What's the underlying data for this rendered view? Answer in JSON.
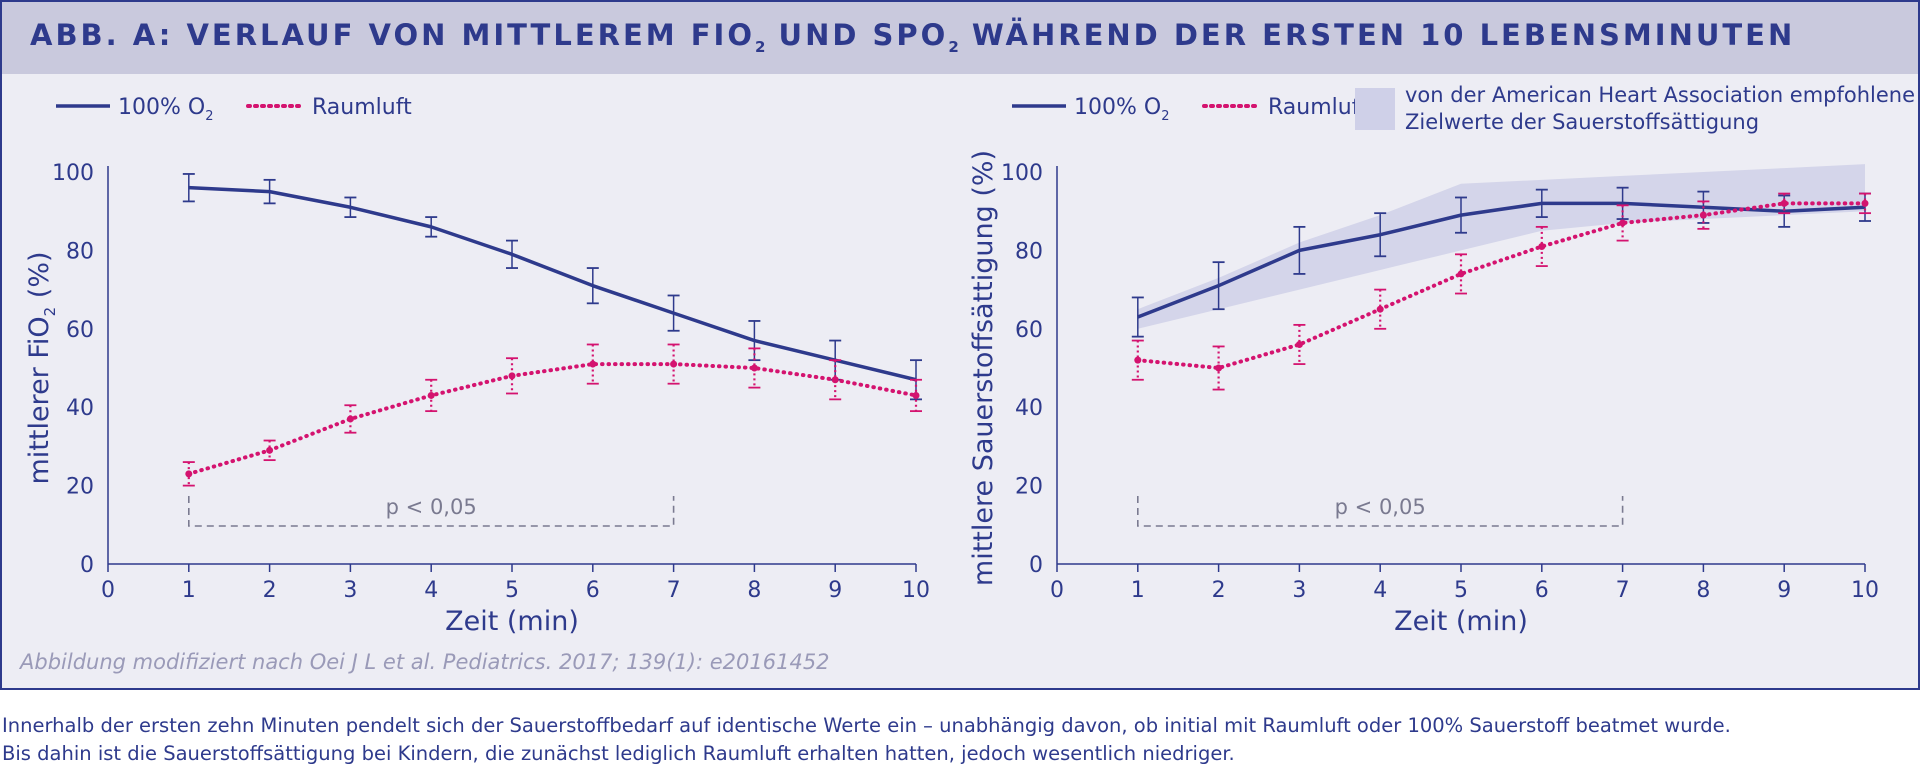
{
  "header": {
    "title_parts": [
      "ABB. A: VERLAUF VON MITTLEREM FIO",
      "2",
      " UND SPO",
      "2",
      " WÄHREND DER ERSTEN 10 LEBENSMINUTEN"
    ]
  },
  "legend": {
    "o2_prefix": "100% O",
    "o2_sub": "2",
    "raumluft": "Raumluft",
    "band_line1": "von der American Heart Association empfohlene",
    "band_line2": "Zielwerte der Sauerstoffsättigung"
  },
  "colors": {
    "o2": "#2e3a8c",
    "raumluft": "#d4136f",
    "band": "#cfd0e8",
    "axis": "#2e3a8c",
    "bracket": "#7a7a90",
    "background": "#ededf4",
    "header": "#c9c9dd"
  },
  "chart_data": [
    {
      "type": "line",
      "xlabel": "Zeit (min)",
      "ylabel_prefix": "mittlerer FiO",
      "ylabel_sub": "2",
      "ylabel_suffix": " (%)",
      "xlim": [
        0,
        10
      ],
      "ylim": [
        0,
        100
      ],
      "xticks": [
        0,
        1,
        2,
        3,
        4,
        5,
        6,
        7,
        8,
        9,
        10
      ],
      "yticks": [
        0,
        20,
        40,
        60,
        80,
        100
      ],
      "x": [
        1,
        2,
        3,
        4,
        5,
        6,
        7,
        8,
        9,
        10
      ],
      "series": [
        {
          "name": "100% O2",
          "style": "solid",
          "values": [
            96,
            95,
            91,
            86,
            79,
            71,
            64,
            57,
            52,
            47
          ],
          "err": [
            3.5,
            3,
            2.5,
            2.5,
            3.5,
            4.5,
            4.5,
            5,
            5,
            5
          ]
        },
        {
          "name": "Raumluft",
          "style": "dotted",
          "values": [
            23,
            29,
            37,
            43,
            48,
            51,
            51,
            50,
            47,
            43
          ],
          "err": [
            3,
            2.5,
            3.5,
            4,
            4.5,
            5,
            5,
            5,
            5,
            4
          ]
        }
      ],
      "bracket": {
        "label": "p < 0,05",
        "from": 1,
        "to": 7
      }
    },
    {
      "type": "line",
      "xlabel": "Zeit (min)",
      "ylabel": "mittlere Sauerstoffsättigung (%)",
      "xlim": [
        0,
        10
      ],
      "ylim": [
        0,
        100
      ],
      "xticks": [
        0,
        1,
        2,
        3,
        4,
        5,
        6,
        7,
        8,
        9,
        10
      ],
      "yticks": [
        0,
        20,
        40,
        60,
        80,
        100
      ],
      "x": [
        1,
        2,
        3,
        4,
        5,
        6,
        7,
        8,
        9,
        10
      ],
      "band": {
        "x": [
          1,
          2,
          3,
          4,
          5,
          6,
          7,
          8,
          9,
          10
        ],
        "low": [
          60,
          65,
          70,
          75,
          80,
          85,
          87,
          88,
          89,
          90
        ],
        "high": [
          65,
          73,
          82,
          89,
          97,
          98,
          99,
          100,
          101,
          102
        ]
      },
      "series": [
        {
          "name": "100% O2",
          "style": "solid",
          "values": [
            63,
            71,
            80,
            84,
            89,
            92,
            92,
            91,
            90,
            91
          ],
          "err": [
            5,
            6,
            6,
            5.5,
            4.5,
            3.5,
            4,
            4,
            4,
            3.5
          ]
        },
        {
          "name": "Raumluft",
          "style": "dotted",
          "values": [
            52,
            50,
            56,
            65,
            74,
            81,
            87,
            89,
            92,
            92
          ],
          "err": [
            5,
            5.5,
            5,
            5,
            5,
            5,
            4.5,
            3.5,
            2.5,
            2.5
          ]
        }
      ],
      "bracket": {
        "label": "p < 0,05",
        "from": 1,
        "to": 7
      }
    }
  ],
  "source": "Abbildung modifiziert nach Oei J L et al. Pediatrics. 2017; 139(1): e20161452",
  "caption": {
    "line1": "Innerhalb der ersten zehn Minuten pendelt sich der Sauerstoffbedarf auf identische Werte ein – unabhängig davon, ob initial mit Raumluft oder 100% Sauerstoff beatmet wurde.",
    "line2": "Bis dahin ist die Sauerstoffsättigung bei Kindern, die zunächst lediglich Raumluft erhalten hatten, jedoch wesentlich niedriger."
  }
}
